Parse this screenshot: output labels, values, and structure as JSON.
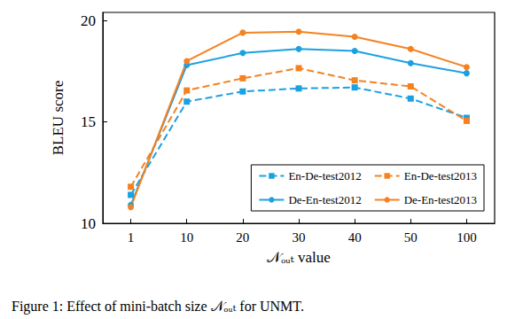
{
  "chart_data": {
    "type": "line",
    "title": "Figure 1: Effect of mini-batch size 𝒩ₒᵤₜ for UNMT.",
    "x_label": "𝒩ₒᵤₜ value",
    "y_label": "BLEU score",
    "categories": [
      "1",
      "10",
      "20",
      "30",
      "40",
      "50",
      "100"
    ],
    "ylim": [
      10,
      20.4
    ],
    "yticks": [
      10,
      15,
      20
    ],
    "grid": false,
    "legend": "lower right",
    "series": [
      {
        "name": "En-De-test2012",
        "color": "#1ba1e2",
        "marker": "square",
        "line_style": "dashed",
        "values": [
          11.4,
          16.0,
          16.5,
          16.65,
          16.7,
          16.15,
          15.2
        ]
      },
      {
        "name": "En-De-test2013",
        "color": "#f58220",
        "marker": "square",
        "line_style": "dashed",
        "values": [
          11.8,
          16.55,
          17.15,
          17.65,
          17.05,
          16.75,
          15.05
        ]
      },
      {
        "name": "De-En-test2012",
        "color": "#1ba1e2",
        "marker": "circle",
        "line_style": "solid",
        "values": [
          10.9,
          17.8,
          18.4,
          18.6,
          18.5,
          17.9,
          17.4
        ]
      },
      {
        "name": "De-En-test2013",
        "color": "#f58220",
        "marker": "circle",
        "line_style": "solid",
        "values": [
          10.8,
          18.0,
          19.4,
          19.45,
          19.2,
          18.6,
          17.7
        ]
      }
    ]
  }
}
